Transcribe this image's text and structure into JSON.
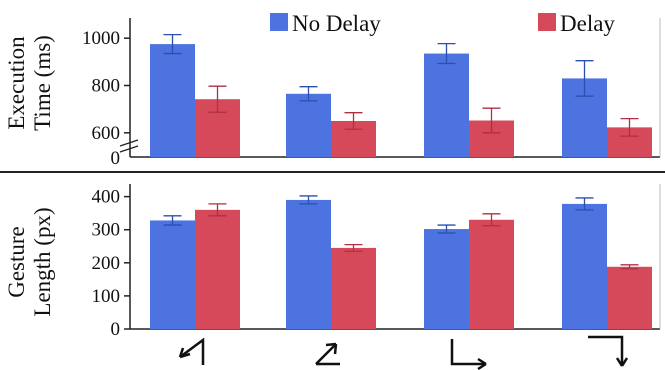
{
  "colors": {
    "no_delay_fill": "#4c73df",
    "no_delay_error": "#2a4fb0",
    "delay_fill": "#d6495a",
    "delay_error": "#b02f42",
    "axis": "#222222"
  },
  "legend": {
    "no_delay": "No Delay",
    "delay": "Delay"
  },
  "chart_data": [
    {
      "type": "bar",
      "ylabel": [
        "Execution",
        "Time (ms)"
      ],
      "categories": [
        "down-left-then-up",
        "up-right-diagonal",
        "down-then-right",
        "right-then-down"
      ],
      "series": [
        {
          "name": "No Delay",
          "values": [
            975,
            765,
            935,
            830
          ],
          "error": [
            40,
            30,
            42,
            75
          ]
        },
        {
          "name": "Delay",
          "values": [
            742,
            650,
            652,
            623
          ],
          "error": [
            55,
            35,
            52,
            37
          ]
        }
      ],
      "ylim": [
        540,
        1060
      ],
      "axis_break": true,
      "yticks": [
        600,
        800,
        1000
      ],
      "ytick_labels": [
        "600",
        "800",
        "1000"
      ],
      "zero_label": "0",
      "legend_placement": "top",
      "grid": false
    },
    {
      "type": "bar",
      "ylabel": [
        "Gesture",
        "Length (px)"
      ],
      "categories": [
        "down-left-then-up",
        "up-right-diagonal",
        "down-then-right",
        "right-then-down"
      ],
      "series": [
        {
          "name": "No Delay",
          "values": [
            328,
            390,
            302,
            378
          ],
          "error": [
            14,
            12,
            12,
            18
          ]
        },
        {
          "name": "Delay",
          "values": [
            360,
            245,
            330,
            188
          ],
          "error": [
            18,
            10,
            18,
            6
          ]
        }
      ],
      "ylim": [
        0,
        420
      ],
      "yticks": [
        0,
        100,
        200,
        300,
        400
      ],
      "ytick_labels": [
        "0",
        "100",
        "200",
        "300",
        "400"
      ],
      "grid": false
    }
  ],
  "x_icons": [
    "arrow-down-left-up-icon",
    "arrow-up-right-icon",
    "arrow-down-right-icon",
    "arrow-right-down-icon"
  ]
}
